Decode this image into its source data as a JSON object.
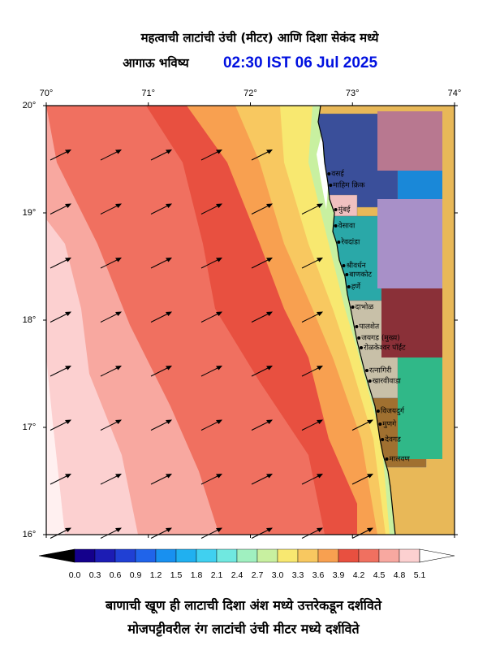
{
  "title": {
    "line1": "महत्वाची लाटांची उंची (मीटर) आणि दिशा सेकंद मध्ये",
    "forecast_label": "आगाऊ भविष्य",
    "forecast_time": "02:30 IST 06 Jul 2025"
  },
  "map": {
    "lon_ticks": [
      "70°",
      "71°",
      "72°",
      "73°",
      "74°"
    ],
    "lat_ticks": [
      "20°",
      "19°",
      "18°",
      "17°",
      "16°"
    ],
    "places": [
      "वसई",
      "माहिम क्रिक",
      "मुंबई",
      "वेसावा",
      "रेवदांडा",
      "श्रीवर्धन",
      "बाणकोट",
      "हर्णे",
      "दाभोळ",
      "पालशेत",
      "जयगड (मुख्य)",
      "रोळकेश्वर पॉईंट",
      "रत्नागिरी",
      "खारवीवाडा",
      "विजयदुर्ग",
      "मुणगे",
      "देवगड",
      "मालवण"
    ]
  },
  "colorbar": {
    "labels": [
      "0.0",
      "0.3",
      "0.6",
      "0.9",
      "1.2",
      "1.5",
      "1.8",
      "2.1",
      "2.4",
      "2.7",
      "3.0",
      "3.3",
      "3.6",
      "3.9",
      "4.2",
      "4.5",
      "4.8",
      "5.1"
    ],
    "under_color": "#000000",
    "colors": [
      "#14008c",
      "#1c1cb4",
      "#2040d4",
      "#2064ea",
      "#1890f0",
      "#20b0f0",
      "#40d0f0",
      "#70e8e0",
      "#a0f0c0",
      "#c8f0a0",
      "#f8e870",
      "#f8c860",
      "#f8a050",
      "#e85040",
      "#f07060",
      "#f8a8a0",
      "#fcd0d0"
    ],
    "over_color": "#ffffff"
  },
  "footer": {
    "line1": "बाणाची खूण ही लाटाची दिशा अंश मध्ये उत्तरेकडून दर्शविते",
    "line2": "मोजपट्टीवरील रंग लाटांची उंची मीटर मध्ये दर्शविते"
  }
}
